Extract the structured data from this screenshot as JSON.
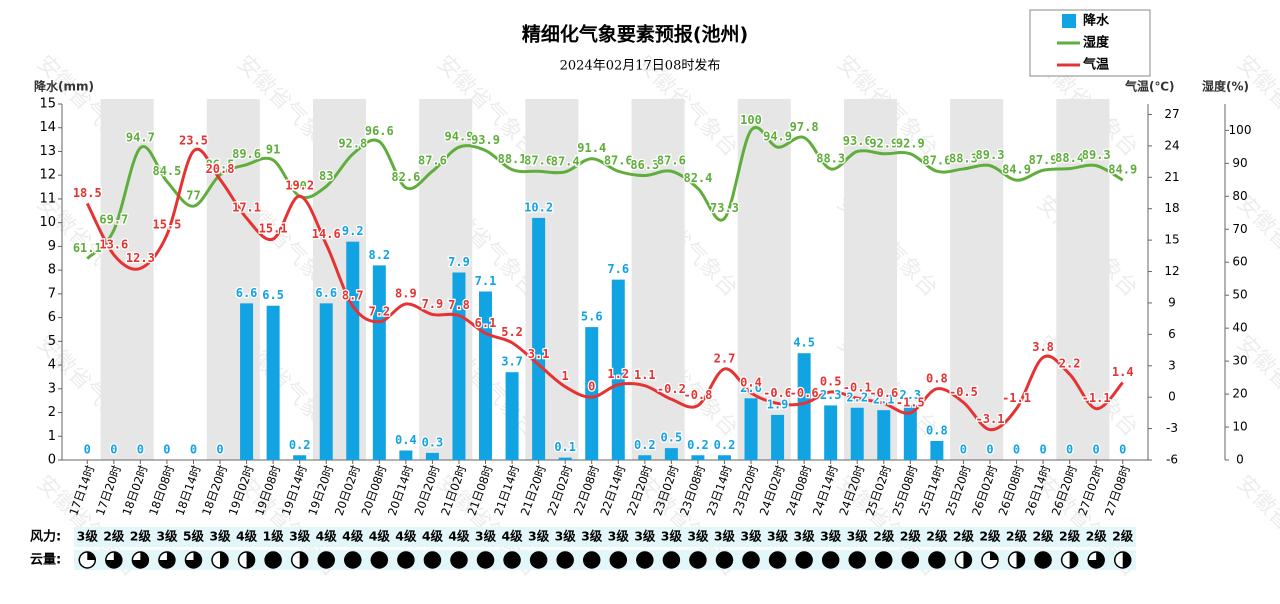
{
  "chart_data": {
    "type": "combo",
    "title": "精细化气象要素预报(池州)",
    "subtitle": "2024年02月17日08时发布",
    "watermark": "安徽省气象台",
    "ylabel": "降水(mm)",
    "y2label": "气温(℃)",
    "y3label": "湿度(%)",
    "wind_label": "风力:",
    "cloud_label": "云量:",
    "categories": [
      "17日14时",
      "17日20时",
      "18日02时",
      "18日08时",
      "18日14时",
      "18日20时",
      "19日02时",
      "19日08时",
      "19日14时",
      "19日20时",
      "20日02时",
      "20日08时",
      "20日14时",
      "20日20时",
      "21日02时",
      "21日08时",
      "21日14时",
      "21日20时",
      "22日02时",
      "22日08时",
      "22日14时",
      "22日20时",
      "23日02时",
      "23日08时",
      "23日14时",
      "23日20时",
      "24日02时",
      "24日08时",
      "24日14时",
      "24日20时",
      "25日02时",
      "25日08时",
      "25日14时",
      "25日20时",
      "26日02时",
      "26日08时",
      "26日14时",
      "26日20时",
      "27日02时",
      "27日08时"
    ],
    "ylim": [
      0,
      15
    ],
    "yticks": [
      0,
      1,
      2,
      3,
      4,
      5,
      6,
      7,
      8,
      9,
      10,
      11,
      12,
      13,
      14,
      15
    ],
    "y2lim": [
      -6,
      28
    ],
    "y2ticks": [
      -6,
      -3,
      0,
      3,
      6,
      9,
      12,
      15,
      18,
      21,
      24,
      27
    ],
    "y3lim": [
      0,
      108
    ],
    "y3ticks": [
      0,
      10,
      20,
      30,
      40,
      50,
      60,
      70,
      80,
      90,
      100
    ],
    "series": [
      {
        "name": "降水",
        "type": "bar",
        "axis": "y",
        "color": "#12a3e3",
        "values": [
          0,
          0,
          0,
          0,
          0,
          0,
          6.6,
          6.5,
          0.2,
          6.6,
          9.2,
          8.2,
          0.4,
          0.3,
          7.9,
          7.1,
          3.7,
          10.2,
          0.1,
          5.6,
          7.6,
          0.2,
          0.5,
          0.2,
          0.2,
          2.6,
          1.9,
          4.5,
          2.3,
          2.2,
          2.1,
          2.3,
          0.8,
          0,
          0,
          0,
          0,
          0,
          0,
          0
        ]
      },
      {
        "name": "湿度",
        "type": "line",
        "axis": "y3",
        "color": "#5fae3c",
        "values": [
          61.1,
          69.7,
          94.7,
          84.5,
          77,
          86.5,
          89.6,
          91,
          80,
          83,
          92.8,
          96.6,
          82.6,
          87.6,
          94.9,
          93.9,
          88.1,
          87.6,
          87.4,
          91.4,
          87.6,
          86.3,
          87.6,
          82.4,
          73.3,
          100,
          94.9,
          97.8,
          88.3,
          93.6,
          92.9,
          92.9,
          87.6,
          88.3,
          89.3,
          84.9,
          87.9,
          88.4,
          89.3,
          84.9
        ]
      },
      {
        "name": "气温",
        "type": "line",
        "axis": "y2",
        "color": "#e53333",
        "values": [
          18.5,
          13.6,
          12.3,
          15.5,
          23.5,
          20.8,
          17.1,
          15.1,
          19.2,
          14.6,
          8.7,
          7.2,
          8.9,
          7.9,
          7.8,
          6.1,
          5.2,
          3.1,
          1,
          0,
          1.2,
          1.1,
          -0.2,
          -0.8,
          2.7,
          0.4,
          -0.6,
          -0.6,
          0.5,
          -0.1,
          -0.6,
          -1.5,
          0.8,
          -0.5,
          -3.1,
          -1.1,
          3.8,
          2.2,
          -1.1,
          1.4
        ]
      }
    ],
    "wind": [
      "3级",
      "2级",
      "2级",
      "3级",
      "5级",
      "3级",
      "4级",
      "1级",
      "3级",
      "4级",
      "4级",
      "4级",
      "4级",
      "4级",
      "4级",
      "3级",
      "4级",
      "3级",
      "3级",
      "3级",
      "3级",
      "3级",
      "3级",
      "3级",
      "3级",
      "3级",
      "3级",
      "3级",
      "3级",
      "3级",
      "2级",
      "2级",
      "2级",
      "2级",
      "2级",
      "2级",
      "2级",
      "2级",
      "2级",
      "2级"
    ],
    "cloud": [
      0.25,
      0.75,
      0.75,
      0.75,
      0.75,
      0.5,
      0.5,
      1,
      0.5,
      1,
      1,
      1,
      1,
      1,
      1,
      1,
      1,
      1,
      1,
      1,
      1,
      1,
      1,
      1,
      1,
      1,
      1,
      1,
      1,
      1,
      1,
      1,
      1,
      0.5,
      0.25,
      0.5,
      1,
      0.5,
      0.75,
      0.5
    ]
  }
}
